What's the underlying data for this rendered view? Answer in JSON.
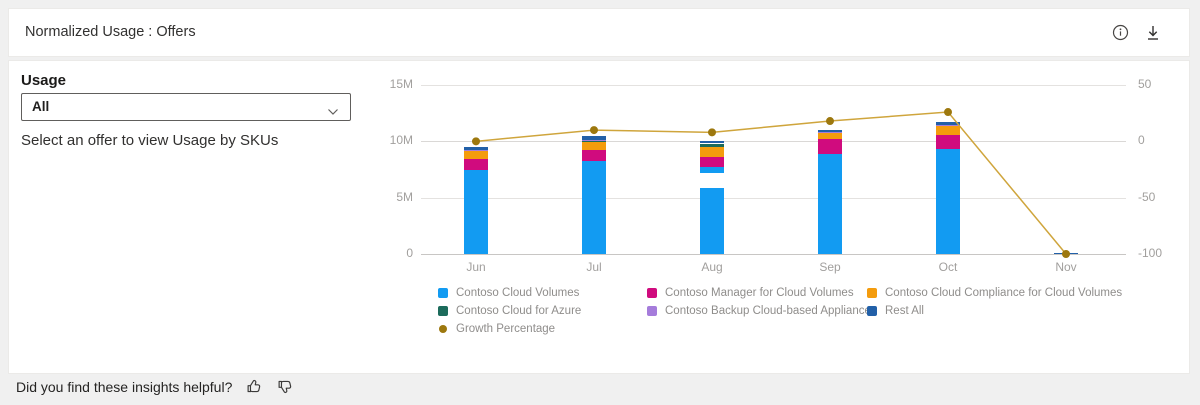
{
  "header": {
    "title": "Normalized Usage : Offers"
  },
  "icons": {
    "top_right": [
      "info-icon",
      "download-icon"
    ],
    "dropdown": "chevron-down-icon",
    "feedback": [
      "thumbs-up-icon",
      "thumbs-down-icon"
    ]
  },
  "panel": {
    "usage_label": "Usage",
    "offer_value": "All",
    "helper_text": "Select an offer to view Usage by SKUs"
  },
  "chart_data": {
    "type": "bar",
    "subtype": "stacked-columns-with-growth-line",
    "categories": [
      "Jun",
      "Jul",
      "Aug",
      "Sep",
      "Oct",
      "Nov"
    ],
    "unit": "millions",
    "left_axis": {
      "max": 15,
      "ticks": [
        {
          "value": 0,
          "label": "0"
        },
        {
          "value": 5,
          "label": "5M"
        },
        {
          "value": 10,
          "label": "10M"
        },
        {
          "value": 15,
          "label": "15M"
        }
      ]
    },
    "right_axis": {
      "min": -100,
      "max": 50,
      "ticks": [
        {
          "value": 50,
          "label": "50"
        },
        {
          "value": 0,
          "label": "0"
        },
        {
          "value": -50,
          "label": "-50"
        },
        {
          "value": -100,
          "label": "-100"
        }
      ]
    },
    "series": {
      "ccv": {
        "name": "Contoso Cloud Volumes",
        "color": "#129bf2"
      },
      "cmcv": {
        "name": "Contoso Manager for Cloud Volumes",
        "color": "#d00b7e"
      },
      "ccccv": {
        "name": "Contoso Cloud Compliance for Cloud Volumes",
        "color": "#f49c0d"
      },
      "cca": {
        "name": "Contoso Cloud for Azure",
        "color": "#1c6b5b"
      },
      "cbca": {
        "name": "Contoso Backup Cloud-based Appliance",
        "color": "#a57cdb"
      },
      "ra": {
        "name": "Rest All",
        "color": "#2260a8"
      },
      "growth": {
        "name": "Growth Percentage",
        "color": "#9d780e",
        "line_color": "#cfa53c"
      },
      "gap": {
        "name": "gap",
        "color": "transparent"
      }
    },
    "bars": [
      {
        "month": "Jun",
        "stack": [
          {
            "s": "ccv",
            "v": 7.5
          },
          {
            "s": "cmcv",
            "v": 0.9
          },
          {
            "s": "ccccv",
            "v": 0.8
          },
          {
            "s": "cca",
            "v": 0.02
          },
          {
            "s": "cbca",
            "v": 0.02
          },
          {
            "s": "ra",
            "v": 0.22
          }
        ]
      },
      {
        "month": "Jul",
        "stack": [
          {
            "s": "ccv",
            "v": 8.25
          },
          {
            "s": "cmcv",
            "v": 0.95
          },
          {
            "s": "ccccv",
            "v": 0.85
          },
          {
            "s": "cca",
            "v": 0.02
          },
          {
            "s": "cbca",
            "v": 0.02
          },
          {
            "s": "ra",
            "v": 0.42
          }
        ]
      },
      {
        "month": "Aug",
        "stack": [
          {
            "s": "ccv",
            "v": 5.9
          },
          {
            "s": "gap",
            "v": 1.28
          },
          {
            "s": "ccv",
            "v": 0.55
          },
          {
            "s": "cmcv",
            "v": 0.9
          },
          {
            "s": "ccccv",
            "v": 0.9
          },
          {
            "s": "cca",
            "v": 0.28
          },
          {
            "s": "ra",
            "v": 0.2
          }
        ]
      },
      {
        "month": "Sep",
        "stack": [
          {
            "s": "ccv",
            "v": 8.9
          },
          {
            "s": "cmcv",
            "v": 1.3
          },
          {
            "s": "ccccv",
            "v": 0.6
          },
          {
            "s": "cca",
            "v": 0.02
          },
          {
            "s": "cbca",
            "v": 0.02
          },
          {
            "s": "ra",
            "v": 0.2
          }
        ]
      },
      {
        "month": "Oct",
        "stack": [
          {
            "s": "ccv",
            "v": 9.3
          },
          {
            "s": "cmcv",
            "v": 1.25
          },
          {
            "s": "ccccv",
            "v": 0.9
          },
          {
            "s": "cca",
            "v": 0.02
          },
          {
            "s": "cbca",
            "v": 0.02
          },
          {
            "s": "ra",
            "v": 0.26
          }
        ]
      },
      {
        "month": "Nov",
        "stack": [
          {
            "s": "ra",
            "v": 0.12
          }
        ]
      }
    ],
    "growth_percentage": {
      "name": "Growth Percentage",
      "values": [
        0,
        10,
        8,
        18,
        26,
        -100
      ]
    },
    "legend_columns": [
      [
        "ccv",
        "cca",
        "growth"
      ],
      [
        "cmcv",
        "cbca"
      ],
      [
        "ccccv",
        "ra"
      ]
    ]
  },
  "footer": {
    "question": "Did you find these insights helpful?"
  }
}
